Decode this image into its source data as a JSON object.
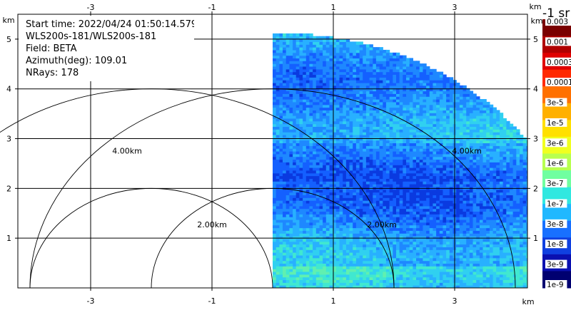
{
  "info": {
    "start_time": "Start time: 2022/04/24 01:50:14.579",
    "instrument": "WLS200s-181/WLS200s-181",
    "field": "Field: BETA",
    "azimuth": "Azimuth(deg): 109.01",
    "nrays": "NRays: 178"
  },
  "colorbar": {
    "title": "-1 sr",
    "labels": [
      "0.003",
      "0.001",
      "0.0003",
      "0.0001",
      "3e-5",
      "1e-5",
      "3e-6",
      "1e-6",
      "3e-7",
      "1e-7",
      "3e-8",
      "1e-8",
      "3e-9",
      "1e-9"
    ],
    "colors": [
      "#7a0000",
      "#b00000",
      "#e00000",
      "#ff2a00",
      "#ff7000",
      "#ffb000",
      "#ffe000",
      "#f0ff20",
      "#b8ff50",
      "#70ffa0",
      "#30e8e0",
      "#20b8ff",
      "#1870ff",
      "#1040e0",
      "#0a10b0",
      "#000070"
    ]
  },
  "chart_data": {
    "type": "heatmap",
    "xlabel": "km",
    "ylabel": "km",
    "xlim": [
      -4.2,
      4.2
    ],
    "ylim": [
      0,
      5.5
    ],
    "xticks": [
      -3,
      -1,
      1,
      3
    ],
    "yticks": [
      1,
      2,
      3,
      4,
      5
    ],
    "range_rings": [
      {
        "label": "2.00km",
        "radius": 2.0
      },
      {
        "label": "4.00km",
        "radius": 4.0
      }
    ],
    "sector": {
      "max_range_km": 5.1,
      "theta_deg": [
        0,
        90
      ]
    }
  }
}
